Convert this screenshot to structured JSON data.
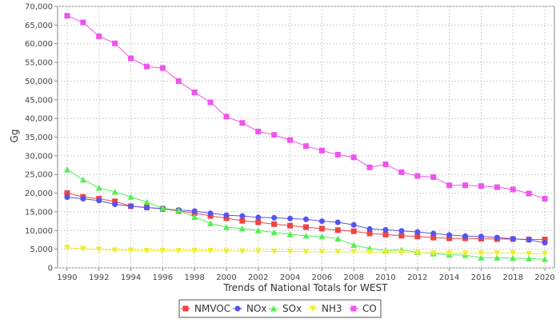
{
  "chart_data": {
    "type": "line",
    "xlabel": "Trends of National Totals for WEST",
    "ylabel": "Gg",
    "x": [
      1990,
      1991,
      1992,
      1993,
      1994,
      1995,
      1996,
      1997,
      1998,
      1999,
      2000,
      2001,
      2002,
      2003,
      2004,
      2005,
      2006,
      2007,
      2008,
      2009,
      2010,
      2011,
      2012,
      2013,
      2014,
      2015,
      2016,
      2017,
      2018,
      2019,
      2020
    ],
    "xlim": [
      1989.4,
      2020.6
    ],
    "ylim": [
      0,
      70000
    ],
    "x_ticks": [
      1990,
      1992,
      1994,
      1996,
      1998,
      2000,
      2002,
      2004,
      2006,
      2008,
      2010,
      2012,
      2014,
      2016,
      2018,
      2020
    ],
    "y_ticks": [
      0,
      5000,
      10000,
      15000,
      20000,
      25000,
      30000,
      35000,
      40000,
      45000,
      50000,
      55000,
      60000,
      65000,
      70000
    ],
    "y_tick_labels": [
      "0",
      "5,000",
      "10,000",
      "15,000",
      "20,000",
      "25,000",
      "30,000",
      "35,000",
      "40,000",
      "45,000",
      "50,000",
      "55,000",
      "60,000",
      "65,000",
      "70,000"
    ],
    "grid": true,
    "legend_position": "bottom-center",
    "series": [
      {
        "name": "NMVOC",
        "color": "#ee4444",
        "marker": "square",
        "values": [
          20000,
          19000,
          18500,
          17800,
          16500,
          16200,
          15800,
          15200,
          14700,
          13900,
          13300,
          12600,
          12200,
          11700,
          11300,
          10900,
          10500,
          10100,
          9800,
          9200,
          8900,
          8600,
          8400,
          8100,
          7900,
          7900,
          7800,
          7700,
          7700,
          7600,
          7600
        ]
      },
      {
        "name": "NOx",
        "color": "#5555ee",
        "marker": "circle",
        "values": [
          18900,
          18500,
          18000,
          17000,
          16500,
          16100,
          15900,
          15500,
          15200,
          14600,
          14100,
          13900,
          13500,
          13400,
          13200,
          13000,
          12500,
          12200,
          11500,
          10400,
          10200,
          9900,
          9600,
          9200,
          8800,
          8500,
          8400,
          8100,
          7800,
          7500,
          6700
        ]
      },
      {
        "name": "SOx",
        "color": "#55ee55",
        "marker": "triangle",
        "values": [
          26300,
          23600,
          21400,
          20300,
          19000,
          17600,
          16000,
          15400,
          13600,
          11900,
          10900,
          10500,
          10000,
          9500,
          9000,
          8600,
          8400,
          7800,
          6100,
          5200,
          4600,
          4800,
          4200,
          3800,
          3500,
          3400,
          2700,
          2700,
          2600,
          2500,
          2300
        ]
      },
      {
        "name": "NH3",
        "color": "#eeee33",
        "marker": "inverted-triangle",
        "values": [
          5400,
          5100,
          4900,
          4700,
          4700,
          4600,
          4600,
          4600,
          4600,
          4600,
          4500,
          4500,
          4500,
          4400,
          4400,
          4300,
          4300,
          4300,
          4300,
          4200,
          4200,
          4100,
          4100,
          4000,
          4000,
          3900,
          3900,
          3900,
          3900,
          3800,
          3800
        ]
      },
      {
        "name": "CO",
        "color": "#ee55ee",
        "marker": "square",
        "values": [
          67500,
          65700,
          62000,
          60100,
          56100,
          53900,
          53500,
          50000,
          47000,
          44300,
          40500,
          38800,
          36500,
          35600,
          34200,
          32600,
          31400,
          30300,
          29600,
          26900,
          27700,
          25600,
          24600,
          24300,
          22100,
          22100,
          21900,
          21600,
          21000,
          19900,
          18500
        ]
      }
    ]
  }
}
